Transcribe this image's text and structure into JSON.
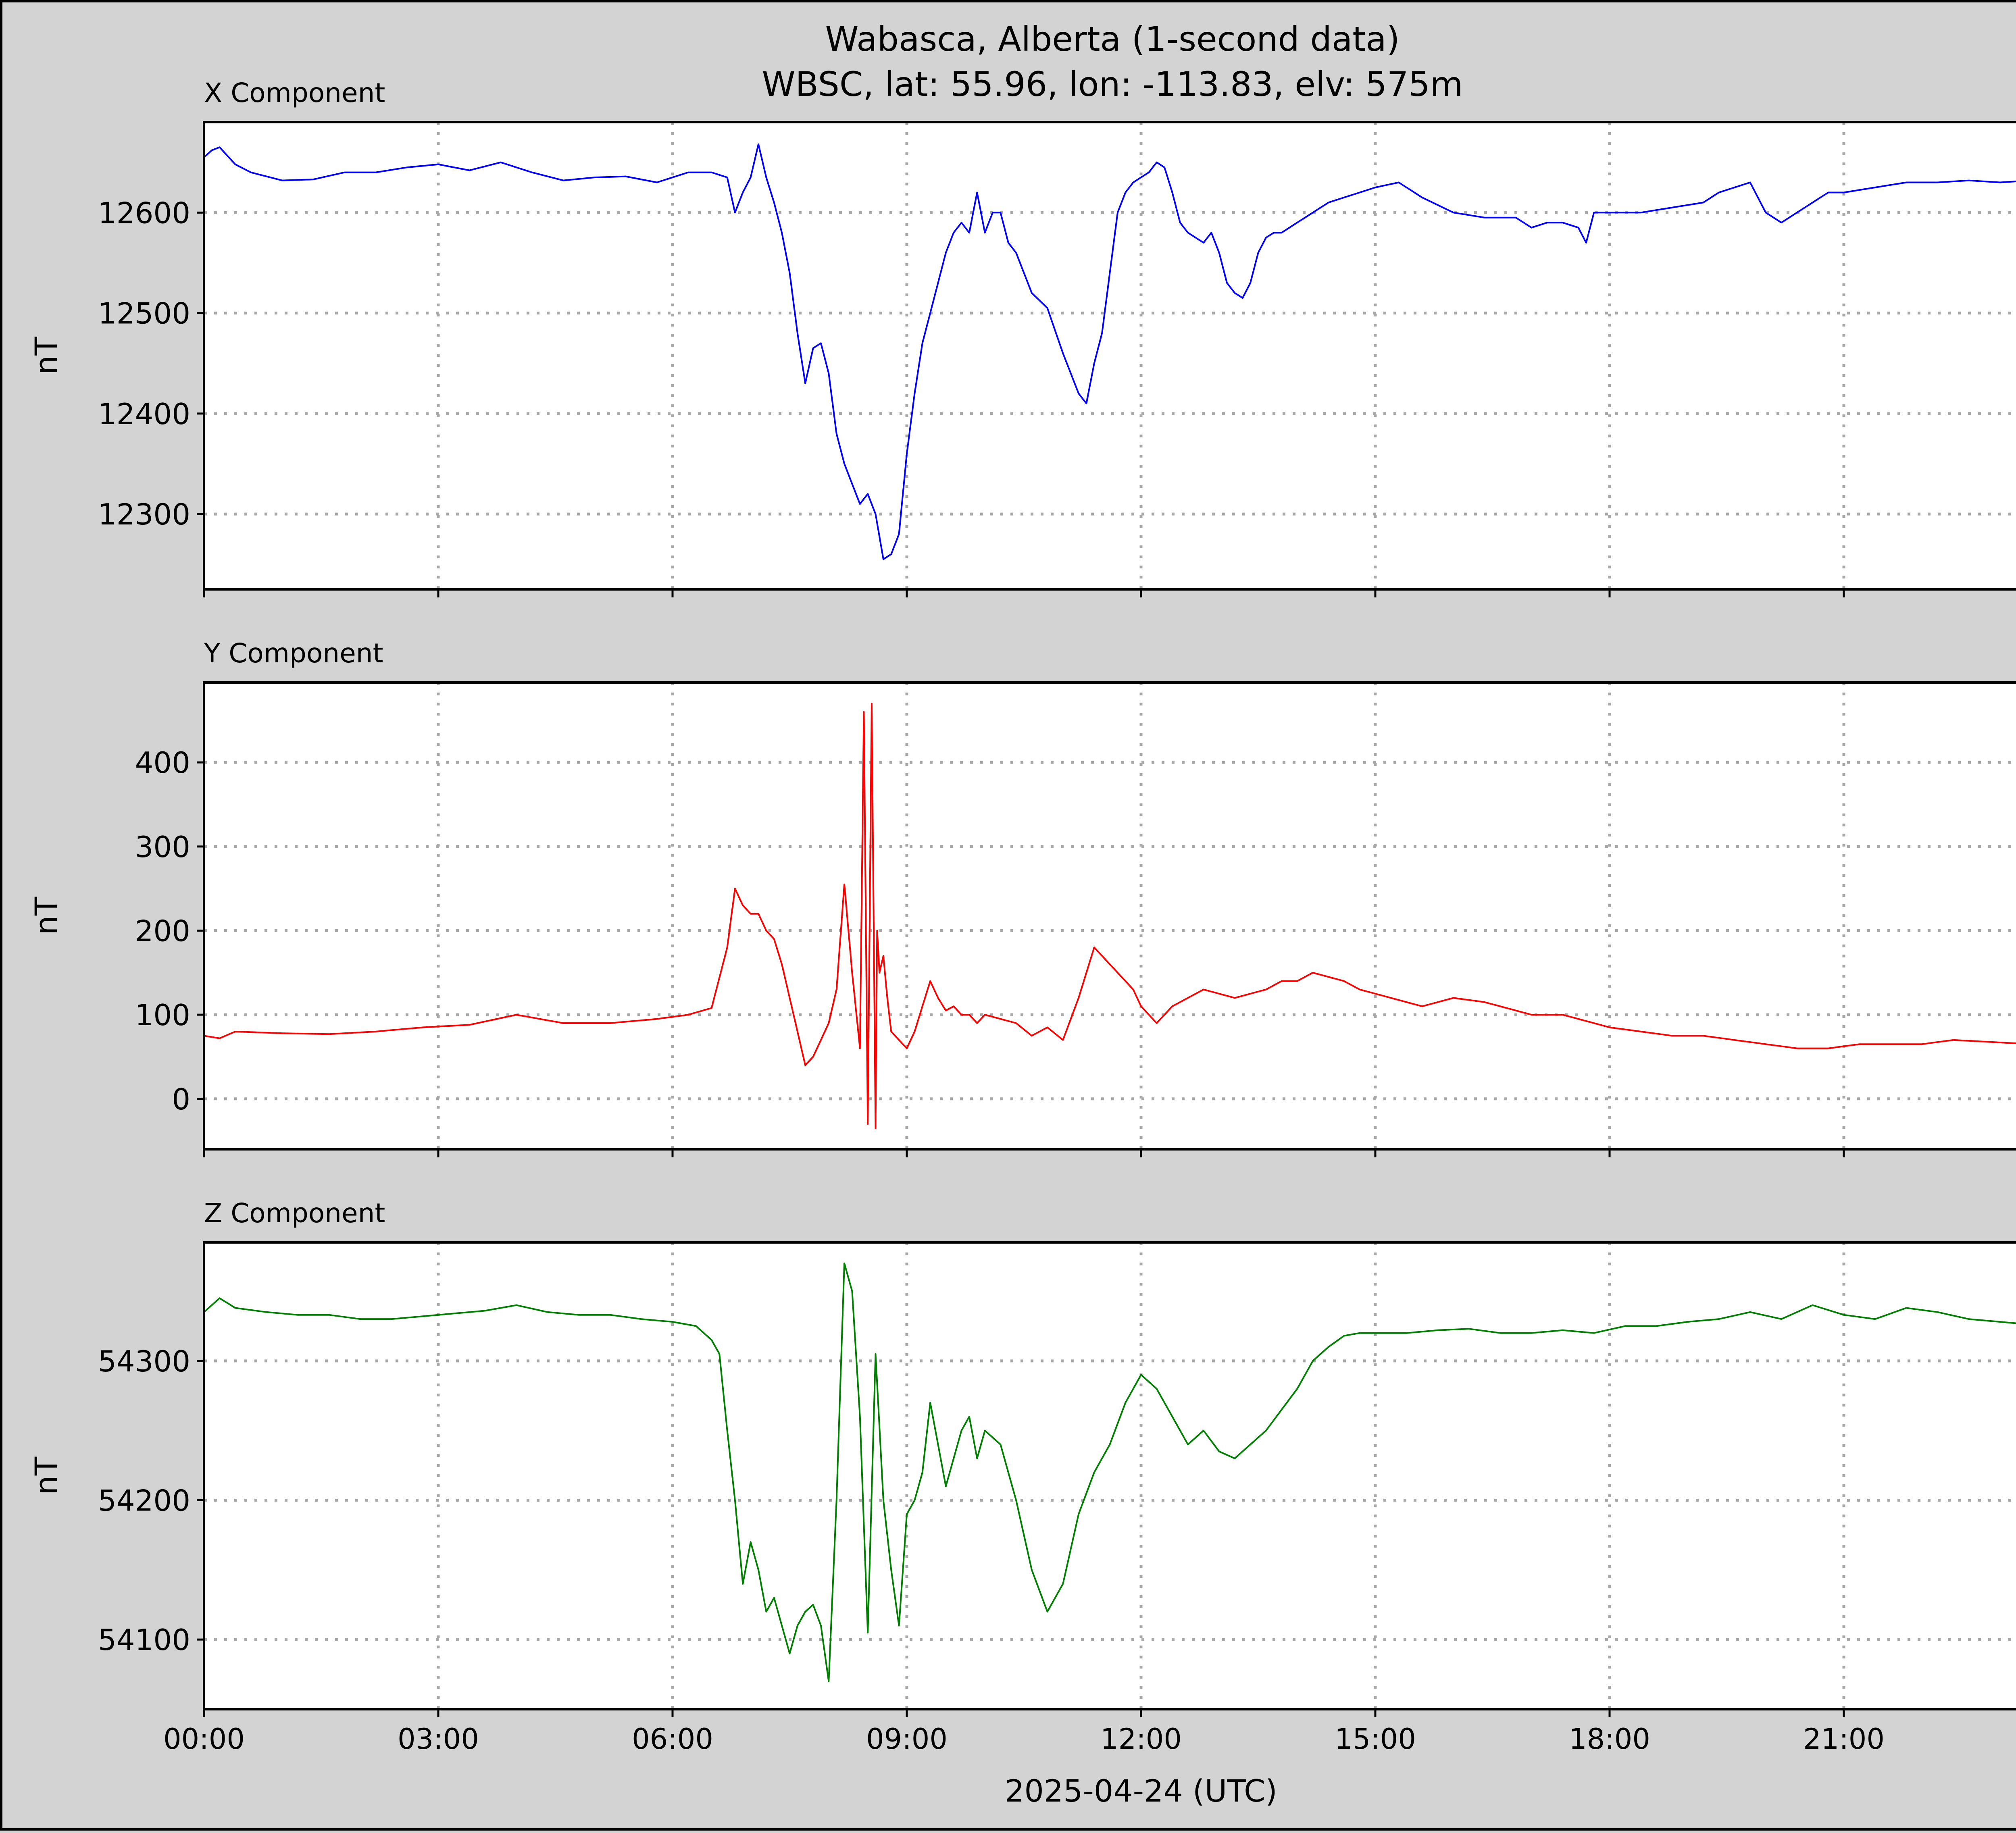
{
  "chart_data": {
    "type": "line",
    "title": "Wabasca, Alberta (1-second data)",
    "subtitle": "WBSC, lat: 55.96, lon: -113.83, elv: 575m",
    "xlabel": "2025-04-24 (UTC)",
    "x_ticks": [
      "00:00",
      "03:00",
      "06:00",
      "09:00",
      "12:00",
      "15:00",
      "18:00",
      "21:00"
    ],
    "x_tick_hours": [
      0,
      3,
      6,
      9,
      12,
      15,
      18,
      21
    ],
    "xlim_hours": [
      0,
      24
    ],
    "grid": true,
    "panels": [
      {
        "name": "X Component",
        "ylabel": "nT",
        "color": "#0000ff",
        "ylim": [
          12225,
          12690
        ],
        "y_ticks": [
          12300,
          12400,
          12500,
          12600
        ],
        "hours": [
          0,
          0.1,
          0.2,
          0.4,
          0.6,
          1.0,
          1.4,
          1.8,
          2.2,
          2.6,
          3.0,
          3.4,
          3.8,
          4.2,
          4.6,
          5.0,
          5.4,
          5.8,
          6.2,
          6.5,
          6.7,
          6.8,
          6.9,
          7.0,
          7.1,
          7.2,
          7.3,
          7.4,
          7.5,
          7.6,
          7.7,
          7.8,
          7.9,
          8.0,
          8.1,
          8.2,
          8.3,
          8.4,
          8.5,
          8.6,
          8.7,
          8.8,
          8.9,
          9.0,
          9.1,
          9.2,
          9.3,
          9.4,
          9.5,
          9.6,
          9.7,
          9.8,
          9.9,
          10.0,
          10.1,
          10.2,
          10.3,
          10.4,
          10.6,
          10.8,
          11.0,
          11.1,
          11.2,
          11.3,
          11.4,
          11.5,
          11.6,
          11.7,
          11.8,
          11.9,
          12.0,
          12.1,
          12.2,
          12.3,
          12.4,
          12.5,
          12.6,
          12.7,
          12.8,
          12.9,
          13.0,
          13.1,
          13.2,
          13.3,
          13.4,
          13.5,
          13.6,
          13.7,
          13.8,
          14.0,
          14.2,
          14.4,
          14.6,
          14.8,
          15.0,
          15.3,
          15.6,
          16.0,
          16.4,
          16.8,
          17.0,
          17.2,
          17.4,
          17.6,
          17.7,
          17.8,
          18.0,
          18.4,
          18.8,
          19.2,
          19.4,
          19.6,
          19.8,
          20.0,
          20.2,
          20.4,
          20.6,
          20.8,
          21.0,
          21.4,
          21.8,
          22.2,
          22.6,
          23.0,
          23.4,
          24.0
        ],
        "values": [
          12655,
          12662,
          12665,
          12648,
          12640,
          12632,
          12633,
          12640,
          12640,
          12645,
          12648,
          12642,
          12650,
          12640,
          12632,
          12635,
          12636,
          12630,
          12640,
          12640,
          12635,
          12600,
          12620,
          12635,
          12668,
          12635,
          12610,
          12580,
          12540,
          12480,
          12430,
          12465,
          12470,
          12440,
          12380,
          12350,
          12330,
          12310,
          12320,
          12300,
          12255,
          12260,
          12280,
          12360,
          12420,
          12470,
          12500,
          12530,
          12560,
          12580,
          12590,
          12580,
          12620,
          12580,
          12600,
          12600,
          12570,
          12560,
          12520,
          12505,
          12460,
          12440,
          12420,
          12410,
          12450,
          12480,
          12540,
          12600,
          12620,
          12630,
          12635,
          12640,
          12650,
          12645,
          12620,
          12590,
          12580,
          12575,
          12570,
          12580,
          12560,
          12530,
          12520,
          12515,
          12530,
          12560,
          12575,
          12580,
          12580,
          12590,
          12600,
          12610,
          12615,
          12620,
          12625,
          12630,
          12615,
          12600,
          12595,
          12595,
          12585,
          12590,
          12590,
          12585,
          12570,
          12600,
          12600,
          12600,
          12605,
          12610,
          12620,
          12625,
          12630,
          12600,
          12590,
          12600,
          12610,
          12620,
          12620,
          12625,
          12630,
          12630,
          12632,
          12630,
          12632,
          12630
        ]
      },
      {
        "name": "Y Component",
        "ylabel": "nT",
        "color": "#ff0000",
        "ylim": [
          -60,
          495
        ],
        "y_ticks": [
          0,
          100,
          200,
          300,
          400
        ],
        "hours": [
          0,
          0.2,
          0.4,
          1.0,
          1.6,
          2.2,
          2.8,
          3.4,
          4.0,
          4.6,
          5.2,
          5.8,
          6.2,
          6.5,
          6.7,
          6.8,
          6.9,
          7.0,
          7.1,
          7.2,
          7.3,
          7.4,
          7.5,
          7.6,
          7.7,
          7.8,
          7.9,
          8.0,
          8.1,
          8.2,
          8.3,
          8.4,
          8.45,
          8.5,
          8.55,
          8.6,
          8.62,
          8.65,
          8.7,
          8.75,
          8.8,
          8.9,
          9.0,
          9.1,
          9.2,
          9.3,
          9.4,
          9.5,
          9.6,
          9.7,
          9.8,
          9.9,
          10.0,
          10.2,
          10.4,
          10.6,
          10.8,
          11.0,
          11.2,
          11.4,
          11.6,
          11.8,
          11.9,
          12.0,
          12.2,
          12.4,
          12.6,
          12.8,
          13.0,
          13.2,
          13.4,
          13.6,
          13.8,
          14.0,
          14.2,
          14.4,
          14.6,
          14.8,
          15.0,
          15.2,
          15.6,
          16.0,
          16.4,
          16.8,
          17.0,
          17.2,
          17.4,
          17.6,
          17.8,
          18.0,
          18.4,
          18.8,
          19.2,
          19.6,
          20.0,
          20.4,
          20.8,
          21.2,
          21.6,
          22.0,
          22.4,
          22.8,
          23.2,
          23.6,
          24.0
        ],
        "values": [
          75,
          72,
          80,
          78,
          77,
          80,
          85,
          88,
          100,
          90,
          90,
          95,
          100,
          108,
          180,
          250,
          230,
          220,
          220,
          200,
          190,
          160,
          120,
          80,
          40,
          50,
          70,
          90,
          130,
          255,
          150,
          60,
          460,
          -30,
          470,
          -35,
          200,
          150,
          170,
          120,
          80,
          70,
          60,
          80,
          110,
          140,
          120,
          105,
          110,
          100,
          100,
          90,
          100,
          95,
          90,
          75,
          85,
          70,
          120,
          180,
          160,
          140,
          130,
          110,
          90,
          110,
          120,
          130,
          125,
          120,
          125,
          130,
          140,
          140,
          150,
          145,
          140,
          130,
          125,
          120,
          110,
          120,
          115,
          105,
          100,
          100,
          100,
          95,
          90,
          85,
          80,
          75,
          75,
          70,
          65,
          60,
          60,
          65,
          65,
          65,
          70,
          68,
          66,
          68,
          70
        ]
      },
      {
        "name": "Z Component",
        "ylabel": "nT",
        "color": "#008000",
        "ylim": [
          54050,
          54385
        ],
        "y_ticks": [
          54100,
          54200,
          54300
        ],
        "hours": [
          0,
          0.2,
          0.4,
          0.8,
          1.2,
          1.6,
          2.0,
          2.4,
          2.8,
          3.2,
          3.6,
          4.0,
          4.4,
          4.8,
          5.2,
          5.6,
          6.0,
          6.3,
          6.5,
          6.6,
          6.7,
          6.8,
          6.9,
          7.0,
          7.1,
          7.2,
          7.3,
          7.4,
          7.5,
          7.6,
          7.7,
          7.8,
          7.9,
          8.0,
          8.1,
          8.2,
          8.3,
          8.4,
          8.5,
          8.6,
          8.7,
          8.8,
          8.9,
          9.0,
          9.1,
          9.2,
          9.3,
          9.4,
          9.5,
          9.6,
          9.7,
          9.8,
          9.9,
          10.0,
          10.2,
          10.4,
          10.6,
          10.8,
          11.0,
          11.2,
          11.4,
          11.6,
          11.8,
          12.0,
          12.2,
          12.4,
          12.6,
          12.8,
          13.0,
          13.2,
          13.4,
          13.6,
          13.8,
          14.0,
          14.2,
          14.4,
          14.6,
          14.8,
          15.0,
          15.4,
          15.8,
          16.2,
          16.6,
          17.0,
          17.4,
          17.8,
          18.2,
          18.6,
          19.0,
          19.4,
          19.8,
          20.2,
          20.6,
          21.0,
          21.4,
          21.8,
          22.2,
          22.6,
          23.0,
          23.4,
          24.0
        ],
        "values": [
          54335,
          54345,
          54338,
          54335,
          54333,
          54333,
          54330,
          54330,
          54332,
          54334,
          54336,
          54340,
          54335,
          54333,
          54333,
          54330,
          54328,
          54325,
          54315,
          54305,
          54250,
          54200,
          54140,
          54170,
          54150,
          54120,
          54130,
          54110,
          54090,
          54110,
          54120,
          54125,
          54110,
          54070,
          54200,
          54370,
          54350,
          54260,
          54105,
          54305,
          54200,
          54150,
          54110,
          54190,
          54200,
          54220,
          54270,
          54240,
          54210,
          54230,
          54250,
          54260,
          54230,
          54250,
          54240,
          54200,
          54150,
          54120,
          54140,
          54190,
          54220,
          54240,
          54270,
          54290,
          54280,
          54260,
          54240,
          54250,
          54235,
          54230,
          54240,
          54250,
          54265,
          54280,
          54300,
          54310,
          54318,
          54320,
          54320,
          54320,
          54322,
          54323,
          54320,
          54320,
          54322,
          54320,
          54325,
          54325,
          54328,
          54330,
          54335,
          54330,
          54340,
          54333,
          54330,
          54338,
          54335,
          54330,
          54328,
          54326,
          54328
        ]
      }
    ]
  }
}
